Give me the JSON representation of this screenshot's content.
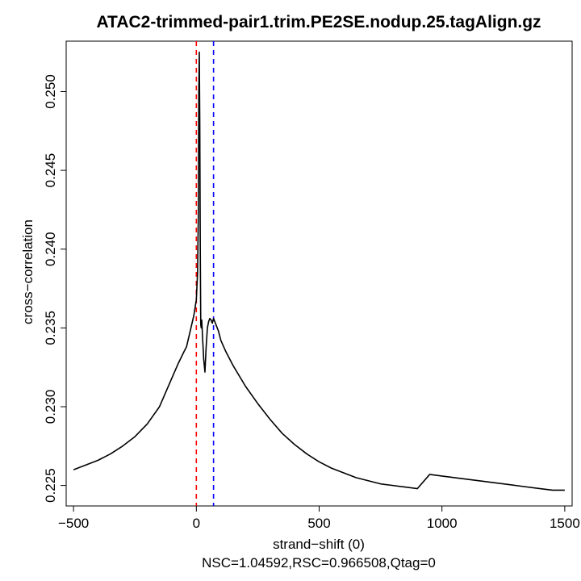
{
  "chart_data": {
    "type": "line",
    "title": "ATAC2-trimmed-pair1.trim.PE2SE.nodup.25.tagAlign.gz",
    "xlabel": "strand−shift (0)",
    "ylabel": "cross−correlation",
    "subtitle": "NSC=1.04592,RSC=0.966508,Qtag=0",
    "xlim": [
      -530,
      1530
    ],
    "ylim": [
      0.2237,
      0.2532
    ],
    "x_ticks": [
      -500,
      0,
      500,
      1000,
      1500
    ],
    "x_tick_labels": [
      "−500",
      "0",
      "500",
      "1000",
      "1500"
    ],
    "y_ticks": [
      0.225,
      0.23,
      0.235,
      0.24,
      0.245,
      0.25
    ],
    "y_tick_labels": [
      "0.225",
      "0.230",
      "0.235",
      "0.240",
      "0.245",
      "0.250"
    ],
    "vlines": [
      {
        "x": 0,
        "color": "#ff0000",
        "style": "dashed"
      },
      {
        "x": 70,
        "color": "#0000ff",
        "style": "dashed"
      }
    ],
    "series": [
      {
        "color": "#000000",
        "x": [
          -500,
          -450,
          -400,
          -350,
          -300,
          -250,
          -200,
          -150,
          -100,
          -75,
          -50,
          -40,
          -25,
          -10,
          0,
          5,
          8,
          10,
          12,
          14,
          16,
          18,
          20,
          22,
          25,
          30,
          35,
          40,
          45,
          50,
          55,
          60,
          65,
          70,
          80,
          90,
          100,
          120,
          150,
          200,
          250,
          300,
          350,
          400,
          450,
          500,
          550,
          600,
          650,
          700,
          750,
          800,
          850,
          900,
          950,
          1000,
          1100,
          1200,
          1300,
          1400,
          1450,
          1500
        ],
        "y": [
          0.226,
          0.2263,
          0.2266,
          0.227,
          0.2275,
          0.2281,
          0.2289,
          0.23,
          0.2318,
          0.2327,
          0.2335,
          0.2338,
          0.2348,
          0.2358,
          0.2368,
          0.2385,
          0.242,
          0.25,
          0.2525,
          0.248,
          0.24,
          0.2352,
          0.235,
          0.2355,
          0.2345,
          0.233,
          0.2322,
          0.2338,
          0.235,
          0.2354,
          0.2356,
          0.2355,
          0.2353,
          0.2356,
          0.2352,
          0.2348,
          0.2342,
          0.2335,
          0.2326,
          0.2313,
          0.2302,
          0.2292,
          0.2283,
          0.2276,
          0.227,
          0.2265,
          0.2261,
          0.2258,
          0.2255,
          0.2253,
          0.2251,
          0.225,
          0.2249,
          0.2248,
          0.2257,
          0.2256,
          0.2254,
          0.2252,
          0.225,
          0.2248,
          0.2247,
          0.2247
        ]
      }
    ]
  }
}
